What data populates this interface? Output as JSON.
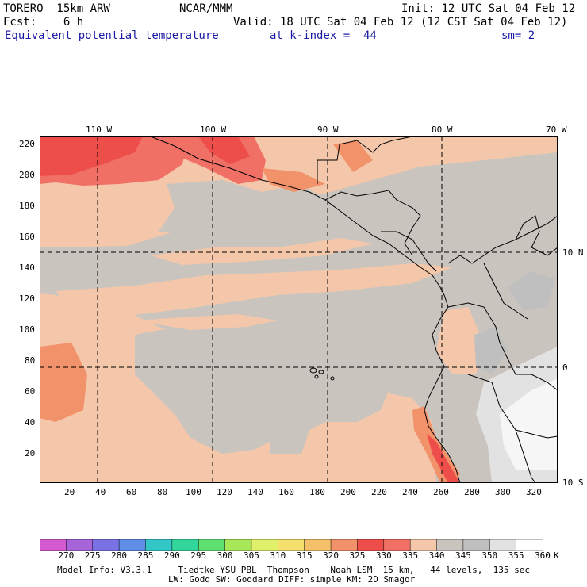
{
  "header": {
    "model": "TORERO  15km ARW",
    "center": "NCAR/MMM",
    "init": "Init: 12 UTC Sat 04 Feb 12",
    "fcst": "Fcst:    6 h",
    "valid": "Valid: 18 UTC Sat 04 Feb 12 (12 CST Sat 04 Feb 12)",
    "field": "Equivalent potential temperature",
    "level": "at k-index =  44",
    "smooth": "sm= 2"
  },
  "map": {
    "lon_labels": [
      "110 W",
      "100 W",
      "90 W",
      "80 W",
      "70 W"
    ],
    "lat_labels_right": [
      "10 N",
      "0",
      "10 S"
    ],
    "y_ticks": [
      "220",
      "200",
      "180",
      "160",
      "140",
      "120",
      "100",
      "80",
      "60",
      "40",
      "20"
    ],
    "x_ticks": [
      "20",
      "40",
      "60",
      "80",
      "100",
      "120",
      "140",
      "160",
      "180",
      "200",
      "220",
      "240",
      "260",
      "280",
      "300",
      "320"
    ],
    "dominant_classes_K": [
      "340",
      "345",
      "350"
    ],
    "peak_class_K": "330"
  },
  "colorbar": {
    "levels": [
      "270",
      "275",
      "280",
      "285",
      "290",
      "295",
      "300",
      "305",
      "310",
      "315",
      "320",
      "325",
      "330",
      "335",
      "340",
      "345",
      "350",
      "355",
      "360"
    ],
    "unit": "K",
    "colors": [
      "#d45ad2",
      "#a664d8",
      "#7a72e4",
      "#5f8ee6",
      "#33c6c6",
      "#33d69a",
      "#5de070",
      "#a8e65a",
      "#dff06a",
      "#f4e06c",
      "#f4c06a",
      "#f2926a",
      "#ee4e4a",
      "#f07066",
      "#f4c7aa",
      "#cac4bf",
      "#bfbfbf",
      "#e2e2e2",
      "#ffffff"
    ]
  },
  "footer": {
    "line1": "Model Info: V3.3.1     Tiedtke YSU PBL  Thompson    Noah LSM  15 km,   44 levels,  135 sec",
    "line2": "LW: Godd SW: Goddard DIFF: simple KM: 2D Smagor"
  }
}
